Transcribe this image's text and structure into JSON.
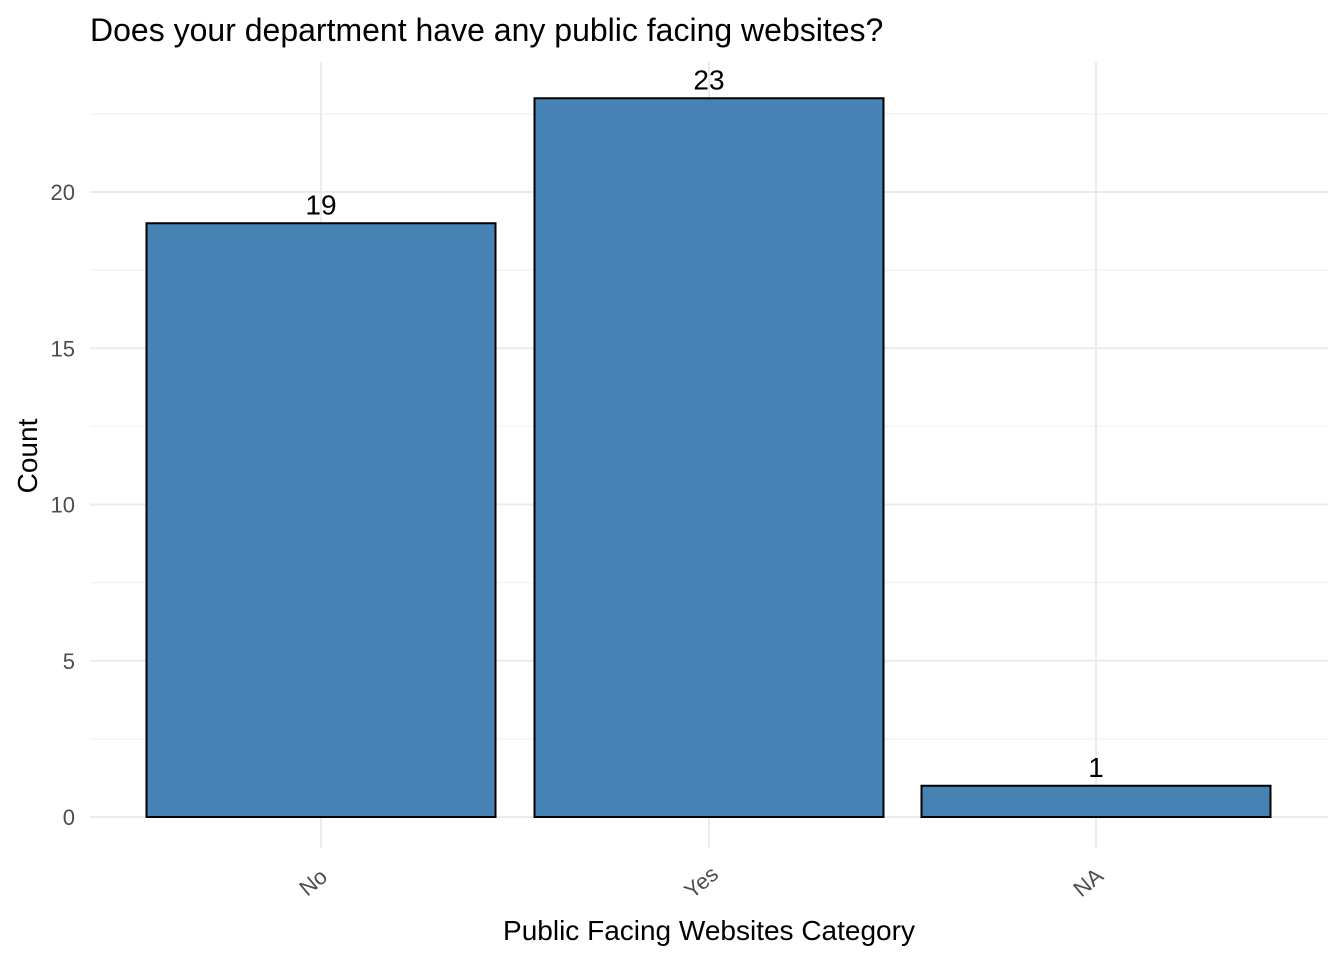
{
  "chart_data": {
    "type": "bar",
    "title": "Does your department have any public facing websites?",
    "xlabel": "Public Facing Websites Category",
    "ylabel": "Count",
    "categories": [
      "No",
      "Yes",
      "NA"
    ],
    "values": [
      19,
      23,
      1
    ],
    "ylim": [
      0,
      24.15
    ],
    "yticks": [
      0,
      5,
      10,
      15,
      20
    ],
    "bar_color": "#4682b4",
    "grid": true
  }
}
